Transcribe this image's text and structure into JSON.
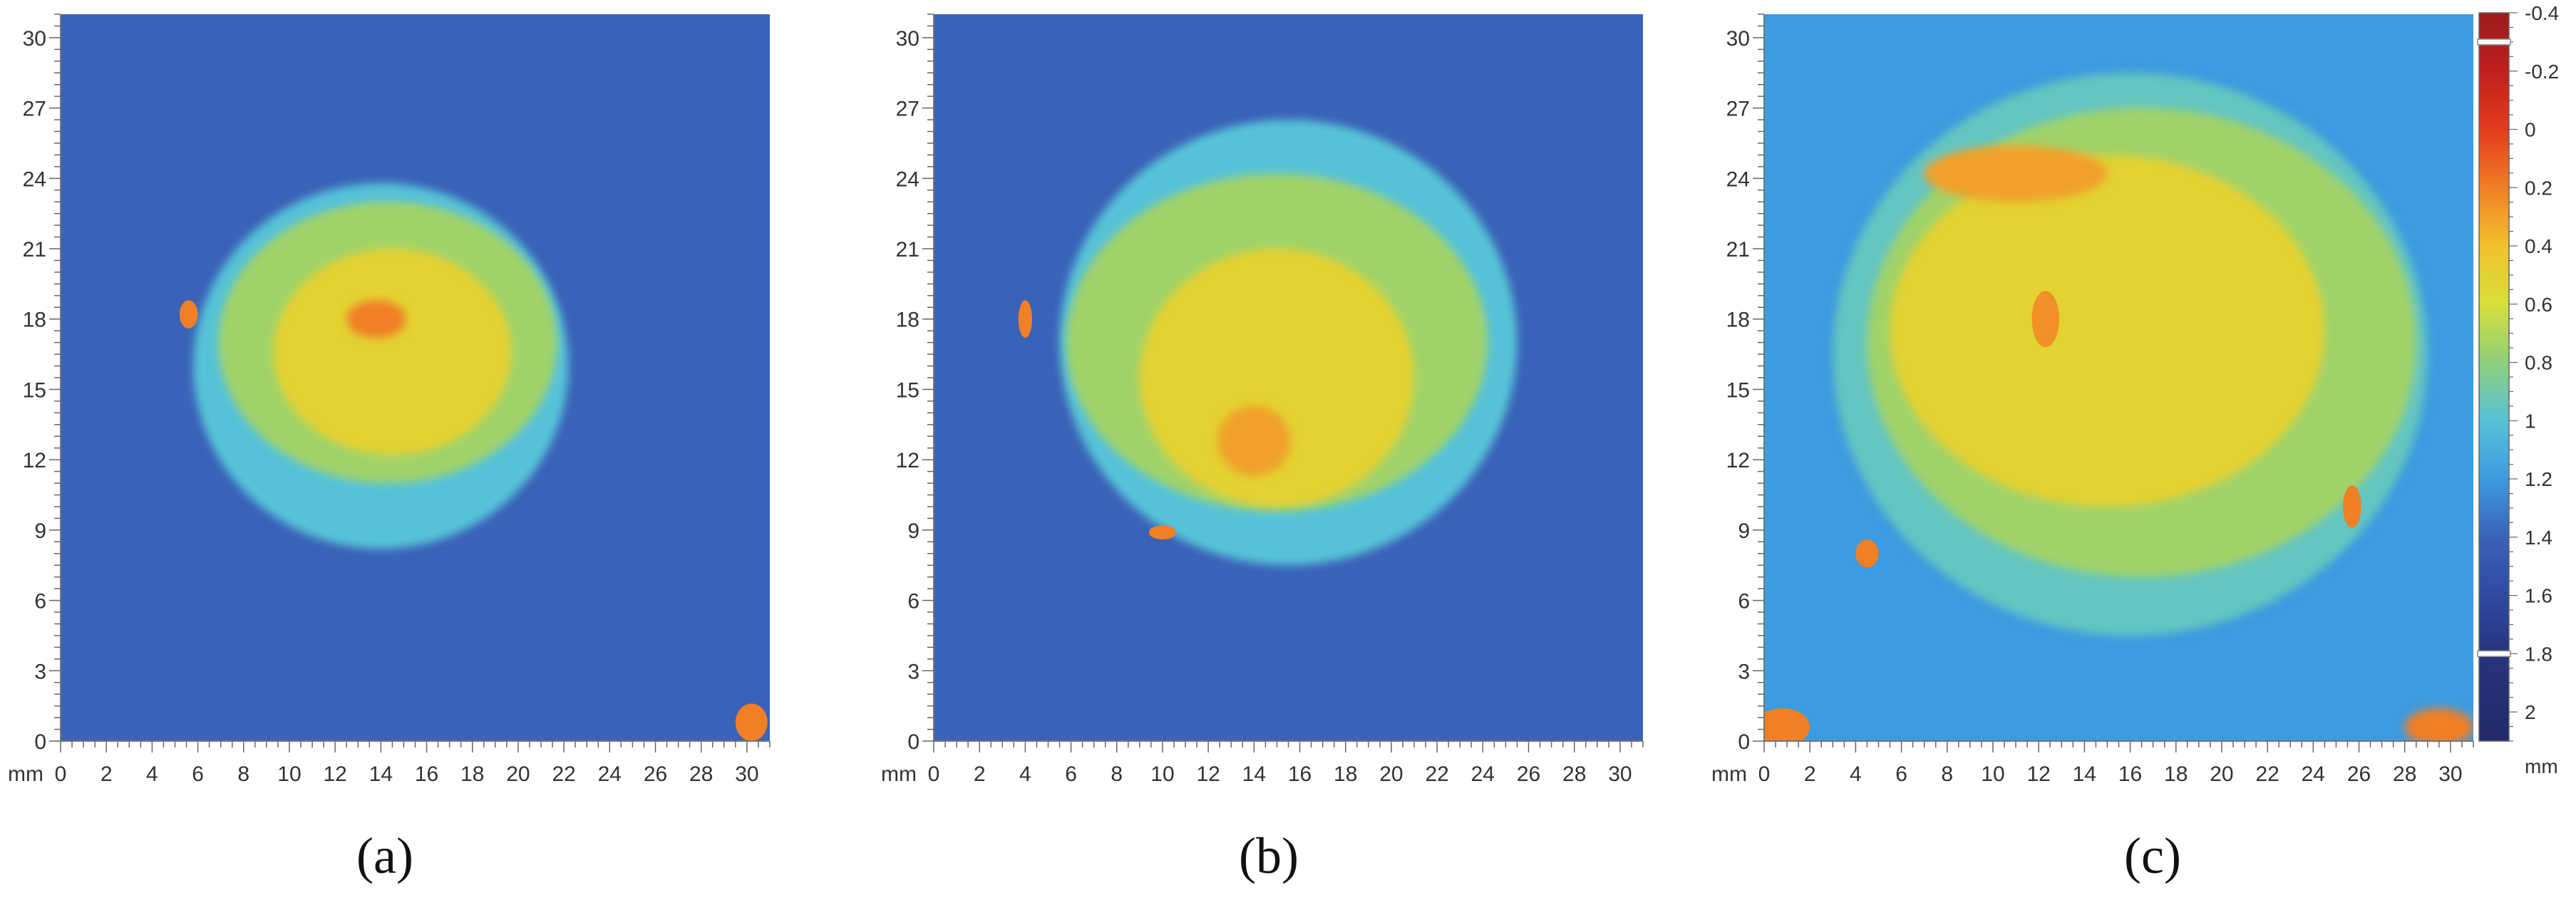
{
  "figure": {
    "captions": [
      "(a)",
      "(b)",
      "(c)"
    ]
  },
  "chart_data": [
    {
      "type": "heatmap",
      "panel_label": "(a)",
      "x_unit_label": "mm",
      "xlim": [
        0,
        31
      ],
      "ylim": [
        0,
        31
      ],
      "x_ticks": [
        0,
        2,
        4,
        6,
        8,
        10,
        12,
        14,
        16,
        18,
        20,
        22,
        24,
        26,
        28,
        30
      ],
      "y_ticks": [
        0,
        3,
        6,
        9,
        12,
        15,
        18,
        21,
        24,
        27,
        30
      ],
      "background_value": 1.4,
      "regions": [
        {
          "name": "outer-light-blue",
          "value": 1.0,
          "cx": 14.0,
          "cy": 16.0,
          "rx": 8.2,
          "ry": 7.8
        },
        {
          "name": "green-ring",
          "value": 0.75,
          "cx": 14.3,
          "cy": 17.0,
          "rx": 7.4,
          "ry": 6.0
        },
        {
          "name": "yellow-core",
          "value": 0.5,
          "cx": 14.5,
          "cy": 16.6,
          "rx": 5.2,
          "ry": 4.4
        },
        {
          "name": "orange-center",
          "value": 0.2,
          "cx": 13.8,
          "cy": 18.0,
          "rx": 1.3,
          "ry": 0.8
        },
        {
          "name": "orange-edge-spot",
          "value": 0.2,
          "cx": 5.6,
          "cy": 18.2,
          "rx": 0.4,
          "ry": 0.6
        },
        {
          "name": "orange-corner-spot",
          "value": 0.2,
          "cx": 30.2,
          "cy": 0.8,
          "rx": 0.7,
          "ry": 0.8
        }
      ]
    },
    {
      "type": "heatmap",
      "panel_label": "(b)",
      "x_unit_label": "mm",
      "xlim": [
        0,
        31
      ],
      "ylim": [
        0,
        31
      ],
      "x_ticks": [
        0,
        2,
        4,
        6,
        8,
        10,
        12,
        14,
        16,
        18,
        20,
        22,
        24,
        26,
        28,
        30
      ],
      "y_ticks": [
        0,
        3,
        6,
        9,
        12,
        15,
        18,
        21,
        24,
        27,
        30
      ],
      "background_value": 1.4,
      "regions": [
        {
          "name": "outer-light-blue",
          "value": 1.0,
          "cx": 15.5,
          "cy": 17.0,
          "rx": 10.0,
          "ry": 9.5
        },
        {
          "name": "green-ring",
          "value": 0.75,
          "cx": 15.0,
          "cy": 17.0,
          "rx": 9.2,
          "ry": 7.2
        },
        {
          "name": "yellow-core",
          "value": 0.5,
          "cx": 15.0,
          "cy": 15.5,
          "rx": 6.0,
          "ry": 5.5
        },
        {
          "name": "orange-patch",
          "value": 0.3,
          "cx": 14.0,
          "cy": 12.8,
          "rx": 1.6,
          "ry": 1.5
        },
        {
          "name": "orange-edge-spot",
          "value": 0.2,
          "cx": 4.0,
          "cy": 18.0,
          "rx": 0.3,
          "ry": 0.8
        },
        {
          "name": "orange-bottom-spot",
          "value": 0.2,
          "cx": 10.0,
          "cy": 8.9,
          "rx": 0.6,
          "ry": 0.3
        }
      ]
    },
    {
      "type": "heatmap",
      "panel_label": "(c)",
      "x_unit_label": "mm",
      "xlim": [
        0,
        31
      ],
      "ylim": [
        0,
        31
      ],
      "x_ticks": [
        0,
        2,
        4,
        6,
        8,
        10,
        12,
        14,
        16,
        18,
        20,
        22,
        24,
        26,
        28,
        30
      ],
      "y_ticks": [
        0,
        3,
        6,
        9,
        12,
        15,
        18,
        21,
        24,
        27,
        30
      ],
      "background_value": 1.2,
      "regions": [
        {
          "name": "outer-light-blue",
          "value": 0.95,
          "cx": 16.0,
          "cy": 16.5,
          "rx": 13.0,
          "ry": 12.0
        },
        {
          "name": "green-ring",
          "value": 0.75,
          "cx": 16.5,
          "cy": 17.0,
          "rx": 12.0,
          "ry": 10.0
        },
        {
          "name": "yellow-core",
          "value": 0.5,
          "cx": 15.0,
          "cy": 17.5,
          "rx": 9.5,
          "ry": 7.5
        },
        {
          "name": "orange-top-band",
          "value": 0.3,
          "cx": 11.0,
          "cy": 24.2,
          "rx": 4.0,
          "ry": 1.2
        },
        {
          "name": "orange-center-spot",
          "value": 0.25,
          "cx": 12.3,
          "cy": 18.0,
          "rx": 0.6,
          "ry": 1.2
        },
        {
          "name": "orange-right-spot",
          "value": 0.2,
          "cx": 25.7,
          "cy": 10.0,
          "rx": 0.4,
          "ry": 0.9
        },
        {
          "name": "orange-left-spot",
          "value": 0.2,
          "cx": 4.5,
          "cy": 8.0,
          "rx": 0.5,
          "ry": 0.6
        },
        {
          "name": "orange-corner-left",
          "value": 0.2,
          "cx": 0.8,
          "cy": 0.6,
          "rx": 1.2,
          "ry": 0.8
        },
        {
          "name": "orange-corner-right",
          "value": 0.2,
          "cx": 29.5,
          "cy": 0.6,
          "rx": 1.5,
          "ry": 0.8
        }
      ]
    }
  ],
  "colorbar": {
    "unit_label": "mm",
    "range": [
      -0.4,
      2.1
    ],
    "reversed": true,
    "tick_labels": [
      "-0.4",
      "-0.2",
      "0",
      "0.2",
      "0.4",
      "0.6",
      "0.8",
      "1",
      "1.2",
      "1.4",
      "1.6",
      "1.8",
      "2"
    ],
    "tick_values": [
      -0.4,
      -0.2,
      0,
      0.2,
      0.4,
      0.6,
      0.8,
      1,
      1.2,
      1.4,
      1.6,
      1.8,
      2
    ],
    "stops": [
      {
        "value": -0.4,
        "color": "#9b1c1c"
      },
      {
        "value": -0.2,
        "color": "#c01f1f"
      },
      {
        "value": 0.0,
        "color": "#e23b1e"
      },
      {
        "value": 0.2,
        "color": "#f07f25"
      },
      {
        "value": 0.4,
        "color": "#f2c22c"
      },
      {
        "value": 0.6,
        "color": "#d6e03a"
      },
      {
        "value": 0.8,
        "color": "#8fcf7a"
      },
      {
        "value": 1.0,
        "color": "#57c2d8"
      },
      {
        "value": 1.2,
        "color": "#3d9be0"
      },
      {
        "value": 1.4,
        "color": "#3a62b8"
      },
      {
        "value": 1.6,
        "color": "#2f4aa0"
      },
      {
        "value": 1.8,
        "color": "#28347e"
      },
      {
        "value": 2.1,
        "color": "#222a6a"
      }
    ],
    "handles": [
      -0.3,
      1.8
    ]
  }
}
